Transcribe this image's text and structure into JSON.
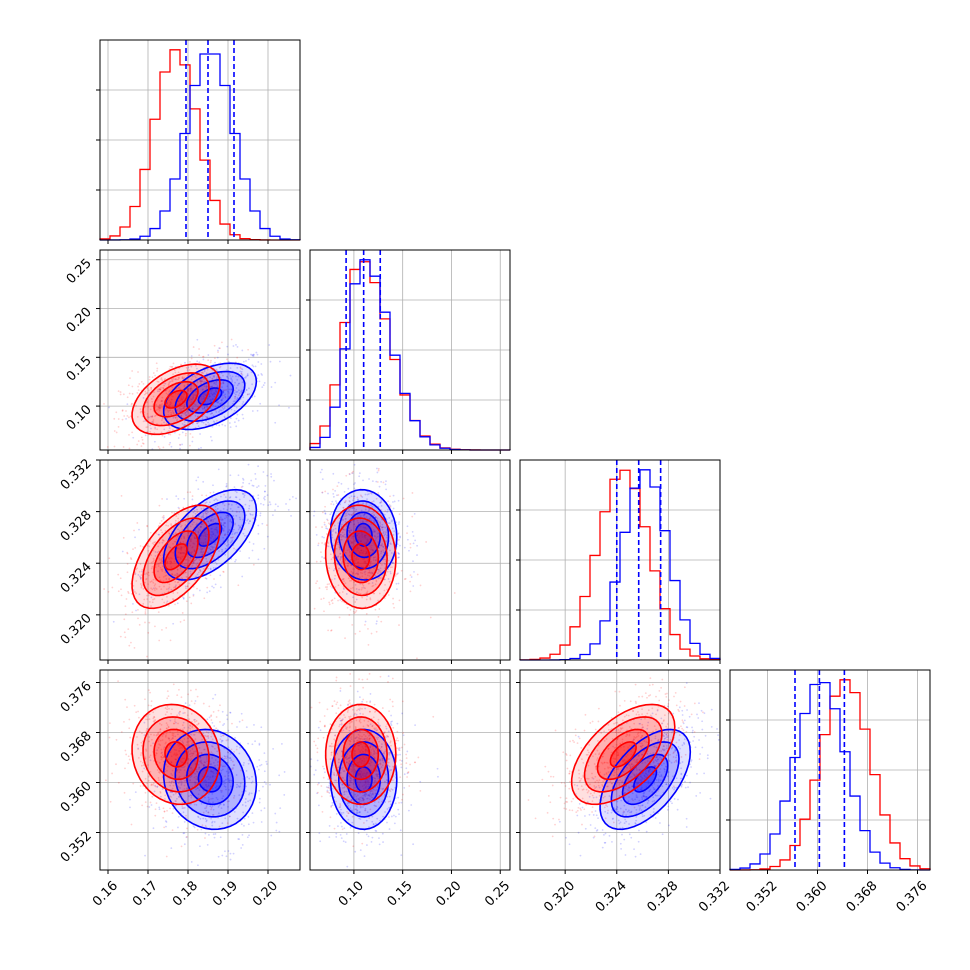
{
  "chart_data": {
    "type": "corner",
    "parameters": [
      "p0",
      "p1",
      "p2",
      "p3"
    ],
    "parameter_labels": [
      "",
      "",
      "",
      ""
    ],
    "ranges": [
      [
        0.158,
        0.208
      ],
      [
        0.055,
        0.26
      ],
      [
        0.3165,
        0.332
      ],
      [
        0.346,
        0.378
      ]
    ],
    "ticks": [
      [
        "0.16",
        "0.17",
        "0.18",
        "0.19",
        "0.20"
      ],
      [
        "0.10",
        "0.15",
        "0.20",
        "0.25"
      ],
      [
        "0.320",
        "0.324",
        "0.328",
        "0.332"
      ],
      [
        "0.352",
        "0.360",
        "0.368",
        "0.376"
      ]
    ],
    "grid": true,
    "series": [
      {
        "color": "#0000ff",
        "means": [
          0.1855,
          0.11,
          0.3262,
          0.3605
        ],
        "sigmas": [
          0.0058,
          0.017,
          0.00175,
          0.004
        ],
        "quantiles": {
          "0": [
            0.1795,
            0.185,
            0.1915
          ],
          "1": [
            0.092,
            0.11,
            0.127
          ],
          "2": [
            0.324,
            0.3257,
            0.3274
          ],
          "3": [
            0.3564,
            0.3603,
            0.3643
          ]
        },
        "correlations": [
          [
            0,
            1,
            0.45
          ],
          [
            0,
            2,
            0.55
          ],
          [
            0,
            3,
            -0.1
          ],
          [
            1,
            2,
            -0.05
          ],
          [
            1,
            3,
            0.0
          ],
          [
            2,
            3,
            0.55
          ]
        ]
      },
      {
        "color": "#ff0000",
        "means": [
          0.177,
          0.107,
          0.3245,
          0.3645
        ],
        "sigmas": [
          0.0055,
          0.018,
          0.002,
          0.004
        ],
        "quantiles": {},
        "correlations": [
          [
            0,
            1,
            0.45
          ],
          [
            0,
            2,
            0.55
          ],
          [
            0,
            3,
            -0.1
          ],
          [
            1,
            2,
            -0.05
          ],
          [
            1,
            3,
            0.0
          ],
          [
            2,
            3,
            0.55
          ]
        ]
      }
    ]
  }
}
